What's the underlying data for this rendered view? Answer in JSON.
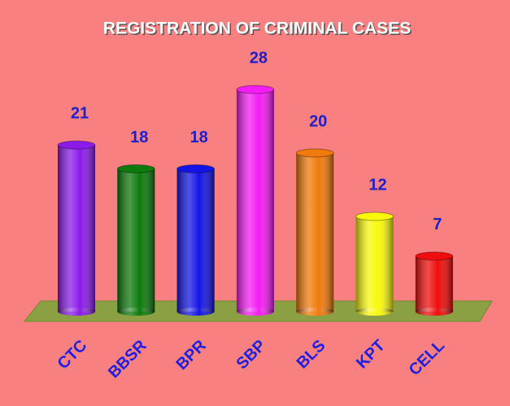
{
  "chart_data": {
    "type": "bar",
    "title": "REGISTRATION OF CRIMINAL CASES",
    "categories": [
      "CTC",
      "BBSR",
      "BPR",
      "SBP",
      "BLS",
      "KPT",
      "CELL"
    ],
    "values": [
      21,
      18,
      18,
      28,
      20,
      12,
      7
    ],
    "colors": [
      "#8a1be8",
      "#0c7a0c",
      "#1414e6",
      "#f41cf4",
      "#f07a0c",
      "#f8f80c",
      "#f00c0c"
    ]
  }
}
